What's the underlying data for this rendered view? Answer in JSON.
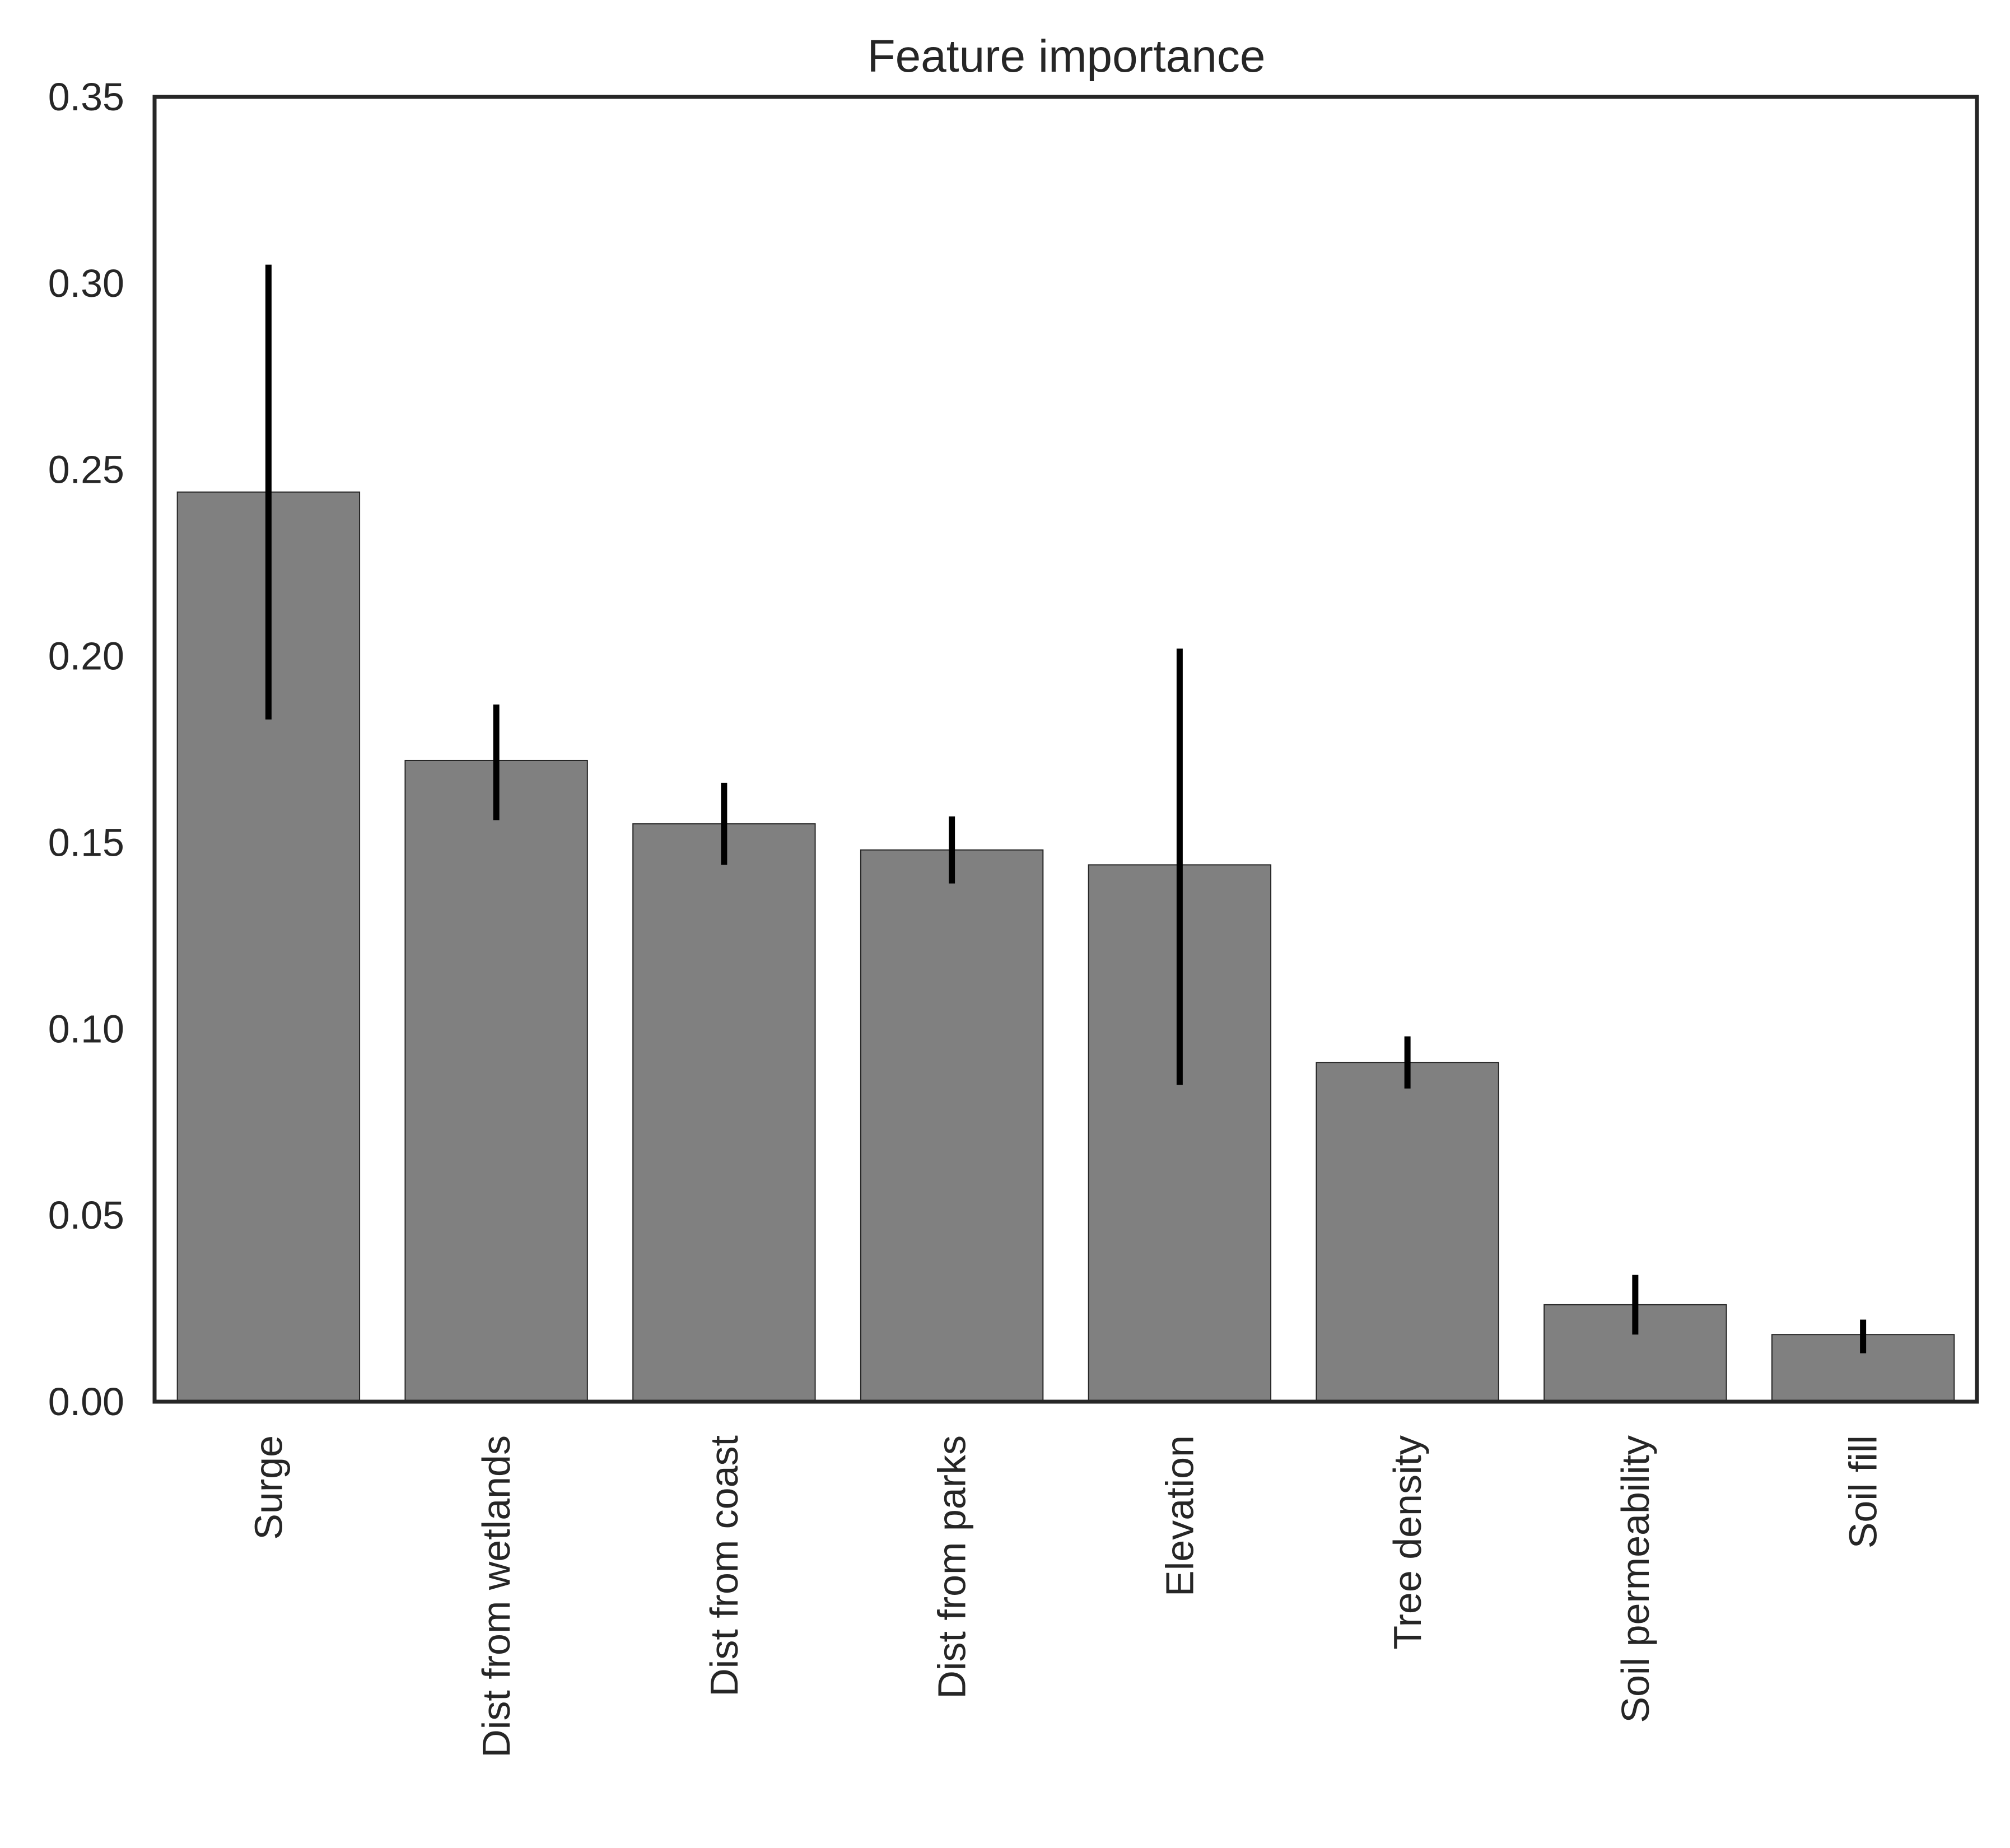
{
  "chart_data": {
    "type": "bar",
    "title": "Feature importance",
    "xlabel": "",
    "ylabel": "",
    "categories": [
      "Surge",
      "Dist from wetlands",
      "Dist from coast",
      "Dist from parks",
      "Elevation",
      "Tree density",
      "Soil permeability",
      "Soil fill"
    ],
    "values": [
      0.244,
      0.172,
      0.155,
      0.148,
      0.144,
      0.091,
      0.026,
      0.018
    ],
    "error_bars": [
      [
        0.183,
        0.305
      ],
      [
        0.156,
        0.187
      ],
      [
        0.144,
        0.166
      ],
      [
        0.139,
        0.157
      ],
      [
        0.085,
        0.202
      ],
      [
        0.084,
        0.098
      ],
      [
        0.018,
        0.034
      ],
      [
        0.013,
        0.022
      ]
    ],
    "ylim": [
      0.0,
      0.35
    ],
    "yticks": [
      "0.00",
      "0.05",
      "0.10",
      "0.15",
      "0.20",
      "0.25",
      "0.30",
      "0.35"
    ],
    "grid": false,
    "legend": "none",
    "colors": {
      "bar_fill": "#808080",
      "bar_edge": "#262626",
      "error_bar": "#000000",
      "axes": "#262626",
      "background": "#ffffff"
    }
  }
}
